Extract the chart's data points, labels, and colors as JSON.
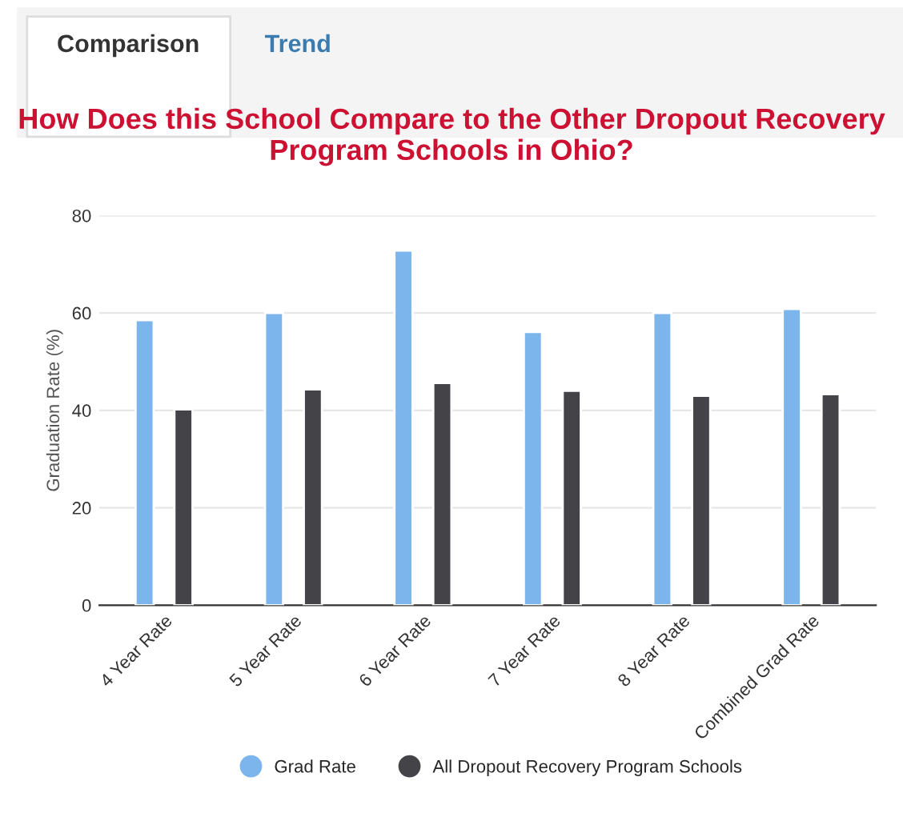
{
  "chart_data": {
    "type": "bar",
    "title": "How Does this School Compare to the Other Dropout Recovery Program Schools in Ohio?",
    "ylabel": "Graduation Rate (%)",
    "categories": [
      "4 Year Rate",
      "5 Year Rate",
      "6 Year Rate",
      "7 Year Rate",
      "8 Year Rate",
      "Combined Grad Rate"
    ],
    "series": [
      {
        "name": "Grad Rate",
        "color": "#7cb5ec",
        "values": [
          58.5,
          60,
          72.8,
          56.1,
          60,
          60.8
        ]
      },
      {
        "name": "All Dropout Recovery Program Schools",
        "color": "#434348",
        "values": [
          40.2,
          44.3,
          45.6,
          44.0,
          43.0,
          43.3
        ]
      }
    ],
    "ylim": [
      0,
      80
    ],
    "yticks": [
      0,
      20,
      40,
      60,
      80
    ],
    "grid": "y",
    "legend": "bottom",
    "annotations": [
      "Comparison",
      "Trend"
    ]
  }
}
